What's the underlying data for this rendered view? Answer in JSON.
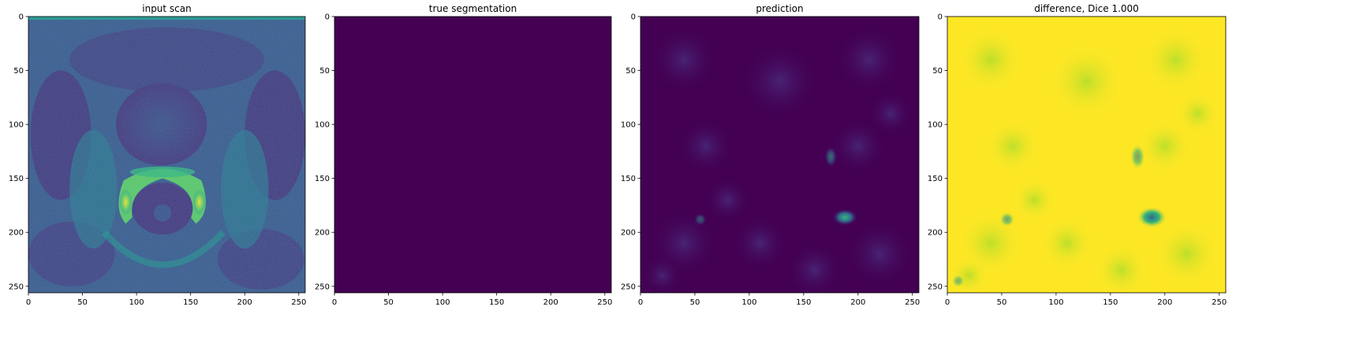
{
  "chart_data": [
    {
      "type": "heatmap",
      "title": "input scan",
      "colormap": "viridis",
      "xticks": [
        0,
        50,
        100,
        150,
        200,
        250
      ],
      "yticks": [
        0,
        50,
        100,
        150,
        200,
        250
      ],
      "xlim": [
        0,
        256
      ],
      "ylim": [
        256,
        0
      ],
      "grid": false
    },
    {
      "type": "heatmap",
      "title": "true segmentation",
      "colormap": "viridis",
      "xticks": [
        0,
        50,
        100,
        150,
        200,
        250
      ],
      "yticks": [
        0,
        50,
        100,
        150,
        200,
        250
      ],
      "xlim": [
        0,
        256
      ],
      "ylim": [
        256,
        0
      ],
      "grid": false
    },
    {
      "type": "heatmap",
      "title": "prediction",
      "colormap": "viridis",
      "xticks": [
        0,
        50,
        100,
        150,
        200,
        250
      ],
      "yticks": [
        0,
        50,
        100,
        150,
        200,
        250
      ],
      "xlim": [
        0,
        256
      ],
      "ylim": [
        256,
        0
      ],
      "grid": false
    },
    {
      "type": "heatmap",
      "title": "difference, Dice 1.000",
      "colormap": "viridis",
      "xticks": [
        0,
        50,
        100,
        150,
        200,
        250
      ],
      "yticks": [
        0,
        50,
        100,
        150,
        200,
        250
      ],
      "xlim": [
        0,
        256
      ],
      "ylim": [
        256,
        0
      ],
      "grid": false
    }
  ],
  "colors": {
    "viridis_low": "#440154",
    "viridis_mid_dark": "#3b528b",
    "viridis_mid": "#21918c",
    "viridis_mid_light": "#5ec962",
    "viridis_high": "#fde725"
  }
}
